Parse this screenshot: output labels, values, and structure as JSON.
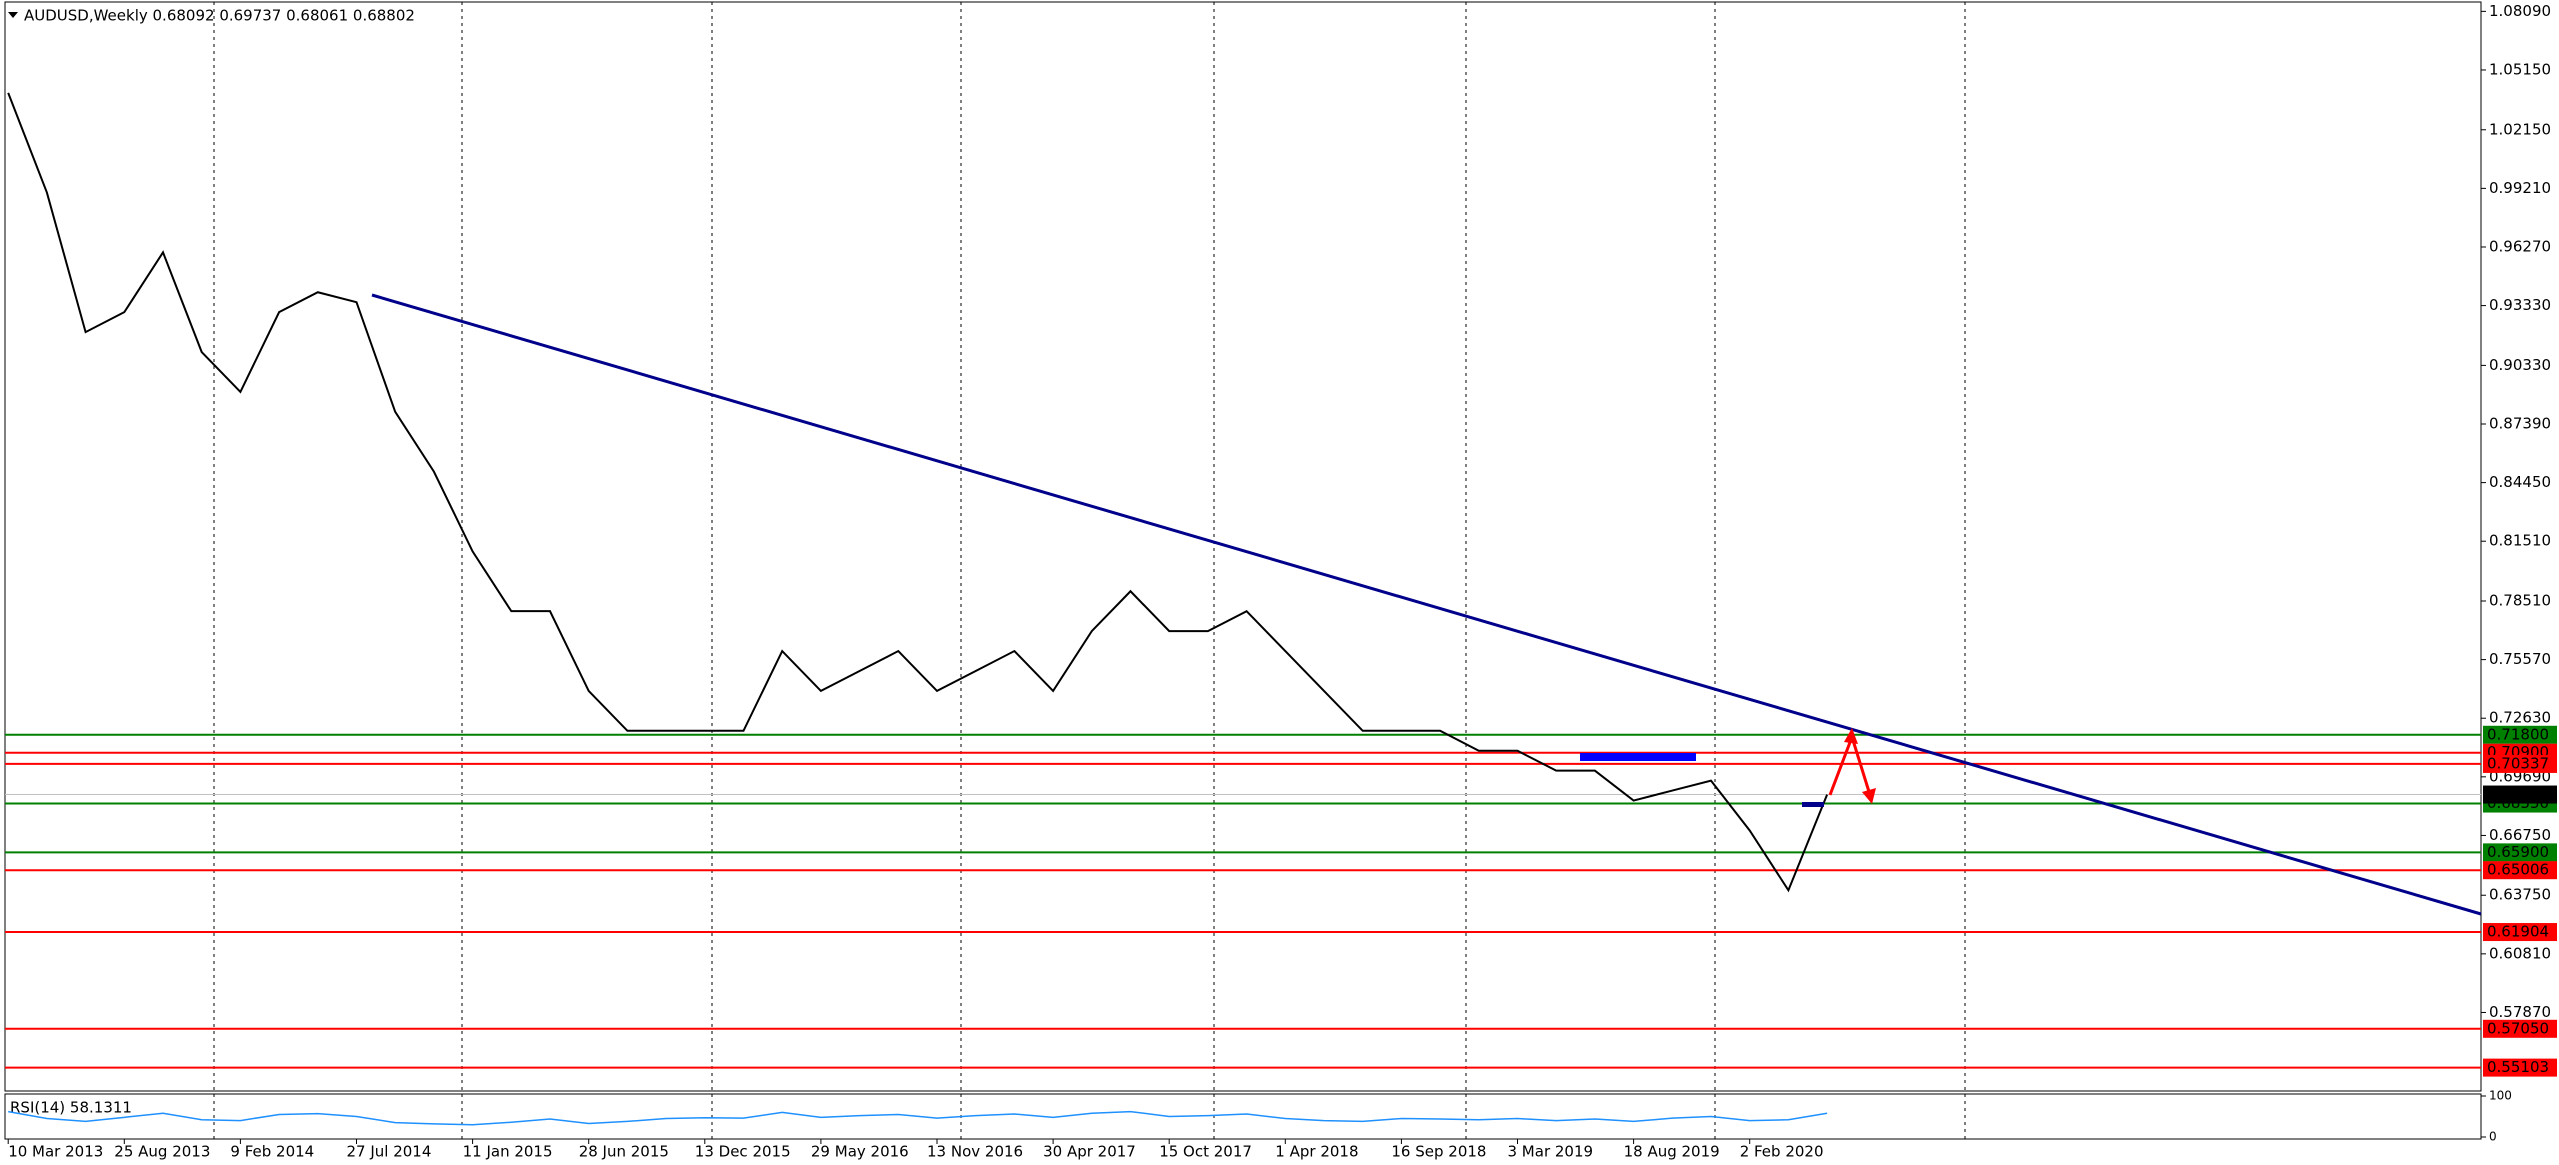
{
  "chart_data": {
    "type": "line",
    "title": "AUDUSD,Weekly  0.68092 0.69737 0.68061 0.68802",
    "categories": [
      "10 Mar 2013",
      null,
      null,
      "25 Aug 2013",
      null,
      null,
      "9 Feb 2014",
      null,
      null,
      "27 Jul 2014",
      null,
      null,
      "11 Jan 2015",
      null,
      null,
      "28 Jun 2015",
      null,
      null,
      "13 Dec 2015",
      null,
      null,
      "29 May 2016",
      null,
      null,
      "13 Nov 2016",
      null,
      null,
      "30 Apr 2017",
      null,
      null,
      "15 Oct 2017",
      null,
      null,
      "1 Apr 2018",
      null,
      null,
      "16 Sep 2018",
      null,
      null,
      "3 Mar 2019",
      null,
      null,
      "18 Aug 2019",
      null,
      null,
      "2 Feb 2020",
      null,
      null
    ],
    "series": [
      {
        "name": "AUDUSD",
        "color": "#000000",
        "values": [
          1.04,
          0.99,
          0.92,
          0.93,
          0.96,
          0.91,
          0.89,
          0.93,
          0.94,
          0.935,
          0.88,
          0.85,
          0.81,
          0.78,
          0.78,
          0.74,
          0.72,
          0.72,
          0.72,
          0.72,
          0.76,
          0.74,
          0.75,
          0.76,
          0.74,
          0.75,
          0.76,
          0.74,
          0.77,
          0.79,
          0.77,
          0.77,
          0.78,
          0.76,
          0.74,
          0.72,
          0.72,
          0.72,
          0.71,
          0.71,
          0.7,
          0.7,
          0.685,
          0.69,
          0.695,
          0.67,
          0.64,
          0.688
        ]
      }
    ],
    "ylim": [
      0.5403,
      1.0866
    ],
    "yticks": [
      {
        "value": 1.0809,
        "label": "1.08090"
      },
      {
        "value": 1.0515,
        "label": "1.05150"
      },
      {
        "value": 1.0215,
        "label": "1.02150"
      },
      {
        "value": 0.9921,
        "label": "0.99210"
      },
      {
        "value": 0.9627,
        "label": "0.96270"
      },
      {
        "value": 0.9333,
        "label": "0.93330"
      },
      {
        "value": 0.9033,
        "label": "0.90330"
      },
      {
        "value": 0.8739,
        "label": "0.87390"
      },
      {
        "value": 0.8445,
        "label": "0.84450"
      },
      {
        "value": 0.8151,
        "label": "0.81510"
      },
      {
        "value": 0.7851,
        "label": "0.78510"
      },
      {
        "value": 0.7557,
        "label": "0.75570"
      },
      {
        "value": 0.7263,
        "label": "0.72630"
      },
      {
        "value": 0.6969,
        "label": "0.69690"
      },
      {
        "value": 0.6675,
        "label": "0.66750"
      },
      {
        "value": 0.6375,
        "label": "0.63750"
      },
      {
        "value": 0.6081,
        "label": "0.60810"
      },
      {
        "value": 0.5787,
        "label": "0.57870"
      }
    ],
    "levels": [
      {
        "value": 0.718,
        "label": "0.71800",
        "color": "#008000"
      },
      {
        "value": 0.709,
        "label": "0.70900",
        "color": "#ff0000"
      },
      {
        "value": 0.70337,
        "label": "0.70337",
        "color": "#ff0000"
      },
      {
        "value": 0.6835,
        "label": "0.68350",
        "color": "#008000"
      },
      {
        "value": 0.659,
        "label": "0.65900",
        "color": "#008000"
      },
      {
        "value": 0.65006,
        "label": "0.65006",
        "color": "#ff0000"
      },
      {
        "value": 0.61904,
        "label": "0.61904",
        "color": "#ff0000"
      },
      {
        "value": 0.5705,
        "label": "0.57050",
        "color": "#ff0000"
      },
      {
        "value": 0.55103,
        "label": "0.55103",
        "color": "#ff0000"
      }
    ],
    "current_price": {
      "value": 0.68802,
      "label": "0.68802",
      "color": "#000000"
    },
    "rsi": {
      "title": "RSI(14) 58.1311",
      "color": "#1e90ff",
      "ylim": [
        0,
        100
      ],
      "yticks": [
        100,
        0
      ],
      "values": [
        62,
        45,
        38,
        48,
        58,
        42,
        40,
        55,
        57,
        50,
        35,
        32,
        30,
        36,
        44,
        33,
        38,
        45,
        47,
        46,
        60,
        48,
        52,
        55,
        46,
        52,
        56,
        48,
        58,
        62,
        50,
        52,
        56,
        45,
        40,
        38,
        45,
        44,
        42,
        45,
        40,
        44,
        38,
        46,
        50,
        40,
        42,
        58
      ]
    }
  }
}
